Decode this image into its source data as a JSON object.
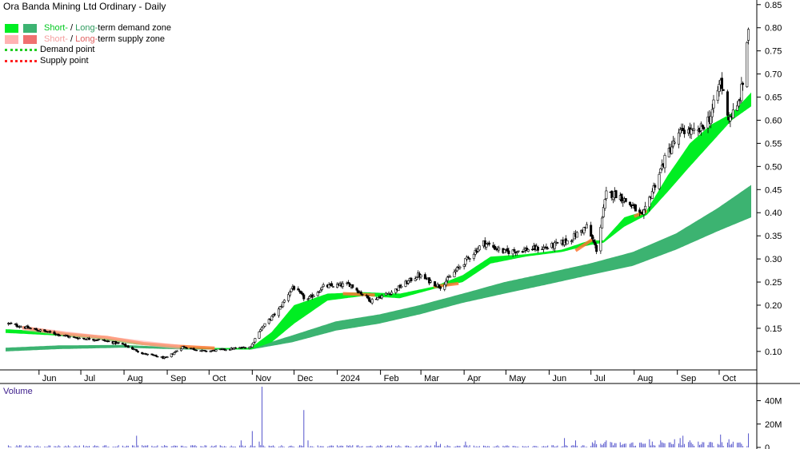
{
  "chart": {
    "title": "Ora Banda Mining Ltd Ordinary - Daily",
    "legend": {
      "demand_zone": {
        "short": "Short-",
        "sep": " / ",
        "long": "Long-",
        "rest": "term demand zone"
      },
      "supply_zone": {
        "short": "Short-",
        "sep": " / ",
        "long": "Long-",
        "rest": "term supply zone"
      },
      "demand_point": "Demand point",
      "supply_point": "Supply point"
    },
    "volume_label": "Volume"
  },
  "colors": {
    "short_demand": "#00ee22",
    "long_demand": "#3cb371",
    "short_supply": "#ffb3b3",
    "long_supply": "#f07070",
    "demand_point": "#22cc22",
    "supply_point": "#ff2222",
    "volume_bar": "#5555cc",
    "trend_supply": "#ff7733",
    "candle": "#000000"
  },
  "chart_data": {
    "type": "candlestick",
    "x_tick_labels": [
      "Jun",
      "Jul",
      "Aug",
      "Sep",
      "Oct",
      "Nov",
      "Dec",
      "2024",
      "Feb",
      "Mar",
      "Apr",
      "May",
      "Jun",
      "Jul",
      "Aug",
      "Sep",
      "Oct"
    ],
    "y_axis": {
      "ticks": [
        0.1,
        0.15,
        0.2,
        0.25,
        0.3,
        0.35,
        0.4,
        0.45,
        0.5,
        0.55,
        0.6,
        0.65,
        0.7,
        0.75,
        0.8,
        0.85
      ],
      "ylim": [
        0.06,
        0.86
      ]
    },
    "volume_axis": {
      "tick_labels": [
        "40M",
        "20M",
        "0"
      ],
      "ylim": [
        0,
        52
      ]
    },
    "price_anchors": [
      [
        "2023-05-10",
        0.16
      ],
      [
        "2023-05-25",
        0.15
      ],
      [
        "2023-06-10",
        0.14
      ],
      [
        "2023-06-25",
        0.13
      ],
      [
        "2023-07-15",
        0.125
      ],
      [
        "2023-07-31",
        0.115
      ],
      [
        "2023-08-15",
        0.095
      ],
      [
        "2023-08-31",
        0.085
      ],
      [
        "2023-09-12",
        0.11
      ],
      [
        "2023-09-28",
        0.1
      ],
      [
        "2023-10-15",
        0.105
      ],
      [
        "2023-10-31",
        0.11
      ],
      [
        "2023-11-06",
        0.145
      ],
      [
        "2023-11-20",
        0.19
      ],
      [
        "2023-11-30",
        0.24
      ],
      [
        "2023-12-10",
        0.21
      ],
      [
        "2023-12-22",
        0.24
      ],
      [
        "2024-01-10",
        0.245
      ],
      [
        "2024-01-25",
        0.21
      ],
      [
        "2024-02-10",
        0.23
      ],
      [
        "2024-02-28",
        0.265
      ],
      [
        "2024-03-15",
        0.24
      ],
      [
        "2024-03-31",
        0.29
      ],
      [
        "2024-04-15",
        0.335
      ],
      [
        "2024-04-30",
        0.315
      ],
      [
        "2024-05-15",
        0.32
      ],
      [
        "2024-05-31",
        0.325
      ],
      [
        "2024-06-15",
        0.34
      ],
      [
        "2024-06-28",
        0.37
      ],
      [
        "2024-07-05",
        0.32
      ],
      [
        "2024-07-12",
        0.44
      ],
      [
        "2024-07-20",
        0.44
      ],
      [
        "2024-08-01",
        0.41
      ],
      [
        "2024-08-07",
        0.39
      ],
      [
        "2024-08-15",
        0.455
      ],
      [
        "2024-08-25",
        0.53
      ],
      [
        "2024-09-05",
        0.58
      ],
      [
        "2024-09-15",
        0.57
      ],
      [
        "2024-09-25",
        0.61
      ],
      [
        "2024-10-02",
        0.685
      ],
      [
        "2024-10-08",
        0.605
      ],
      [
        "2024-10-14",
        0.625
      ],
      [
        "2024-10-18",
        0.68
      ],
      [
        "2024-10-22",
        0.8
      ]
    ],
    "short_zone_anchors": [
      [
        "2023-05-08",
        0.14,
        0.148
      ],
      [
        "2023-06-10",
        0.135,
        0.143
      ],
      [
        "2023-07-10",
        0.128,
        0.133
      ],
      [
        "2023-08-10",
        0.115,
        0.12
      ],
      [
        "2023-09-10",
        0.107,
        0.11
      ],
      [
        "2023-10-10",
        0.105,
        0.107
      ],
      [
        "2023-10-31",
        0.104,
        0.108
      ],
      [
        "2023-11-15",
        0.12,
        0.142
      ],
      [
        "2023-12-01",
        0.16,
        0.2
      ],
      [
        "2023-12-25",
        0.21,
        0.225
      ],
      [
        "2024-01-20",
        0.22,
        0.228
      ],
      [
        "2024-02-15",
        0.215,
        0.225
      ],
      [
        "2024-03-10",
        0.235,
        0.24
      ],
      [
        "2024-03-31",
        0.25,
        0.265
      ],
      [
        "2024-04-20",
        0.29,
        0.305
      ],
      [
        "2024-05-15",
        0.305,
        0.31
      ],
      [
        "2024-06-10",
        0.315,
        0.32
      ],
      [
        "2024-06-30",
        0.33,
        0.34
      ],
      [
        "2024-07-10",
        0.335,
        0.34
      ],
      [
        "2024-07-25",
        0.37,
        0.39
      ],
      [
        "2024-08-10",
        0.395,
        0.405
      ],
      [
        "2024-08-25",
        0.445,
        0.48
      ],
      [
        "2024-09-10",
        0.5,
        0.55
      ],
      [
        "2024-09-25",
        0.55,
        0.59
      ],
      [
        "2024-10-10",
        0.6,
        0.615
      ],
      [
        "2024-10-24",
        0.63,
        0.66
      ]
    ],
    "long_zone_anchors": [
      [
        "2023-05-08",
        0.1,
        0.108
      ],
      [
        "2023-06-15",
        0.105,
        0.113
      ],
      [
        "2023-07-31",
        0.108,
        0.114
      ],
      [
        "2023-09-15",
        0.104,
        0.108
      ],
      [
        "2023-10-31",
        0.104,
        0.107
      ],
      [
        "2023-11-30",
        0.12,
        0.135
      ],
      [
        "2023-12-31",
        0.145,
        0.165
      ],
      [
        "2024-01-31",
        0.16,
        0.18
      ],
      [
        "2024-02-29",
        0.18,
        0.2
      ],
      [
        "2024-03-31",
        0.205,
        0.225
      ],
      [
        "2024-04-30",
        0.225,
        0.25
      ],
      [
        "2024-05-31",
        0.245,
        0.27
      ],
      [
        "2024-06-30",
        0.265,
        0.29
      ],
      [
        "2024-07-31",
        0.285,
        0.315
      ],
      [
        "2024-08-31",
        0.32,
        0.355
      ],
      [
        "2024-09-30",
        0.36,
        0.41
      ],
      [
        "2024-10-24",
        0.39,
        0.46
      ]
    ],
    "supply_segments": [
      [
        [
          "2023-05-20",
          0.152
        ],
        [
          "2023-06-20",
          0.138
        ],
        [
          "2023-07-20",
          0.13
        ],
        [
          "2023-08-15",
          0.117
        ],
        [
          "2023-09-10",
          0.111
        ],
        [
          "2023-10-05",
          0.107
        ]
      ],
      [
        [
          "2024-01-05",
          0.225
        ],
        [
          "2024-01-28",
          0.222
        ]
      ],
      [
        [
          "2024-03-10",
          0.24
        ],
        [
          "2024-03-28",
          0.247
        ]
      ],
      [
        [
          "2024-06-20",
          0.318
        ],
        [
          "2024-07-02",
          0.342
        ]
      ],
      [
        [
          "2024-08-01",
          0.392
        ],
        [
          "2024-08-10",
          0.404
        ]
      ]
    ],
    "volume_spikes": [
      [
        "2023-08-10",
        10
      ],
      [
        "2023-10-24",
        6
      ],
      [
        "2023-11-01",
        14
      ],
      [
        "2023-11-04",
        10
      ],
      [
        "2023-11-06",
        5
      ],
      [
        "2023-11-08",
        55
      ],
      [
        "2023-12-08",
        32
      ],
      [
        "2023-12-11",
        6
      ],
      [
        "2024-03-12",
        5
      ],
      [
        "2024-03-15",
        3
      ],
      [
        "2024-04-02",
        5
      ],
      [
        "2024-06-08",
        10
      ],
      [
        "2024-06-12",
        8
      ],
      [
        "2024-06-20",
        6
      ],
      [
        "2024-07-04",
        6
      ],
      [
        "2024-07-06",
        8
      ],
      [
        "2024-07-12",
        6
      ],
      [
        "2024-08-10",
        5
      ],
      [
        "2024-08-12",
        7
      ],
      [
        "2024-08-14",
        5
      ],
      [
        "2024-08-20",
        6
      ],
      [
        "2024-08-30",
        7
      ],
      [
        "2024-09-03",
        8
      ],
      [
        "2024-09-05",
        10
      ],
      [
        "2024-09-10",
        6
      ],
      [
        "2024-09-16",
        5
      ],
      [
        "2024-09-28",
        8
      ],
      [
        "2024-10-02",
        11
      ],
      [
        "2024-10-08",
        7
      ],
      [
        "2024-10-20",
        8
      ],
      [
        "2024-10-22",
        12
      ]
    ]
  }
}
